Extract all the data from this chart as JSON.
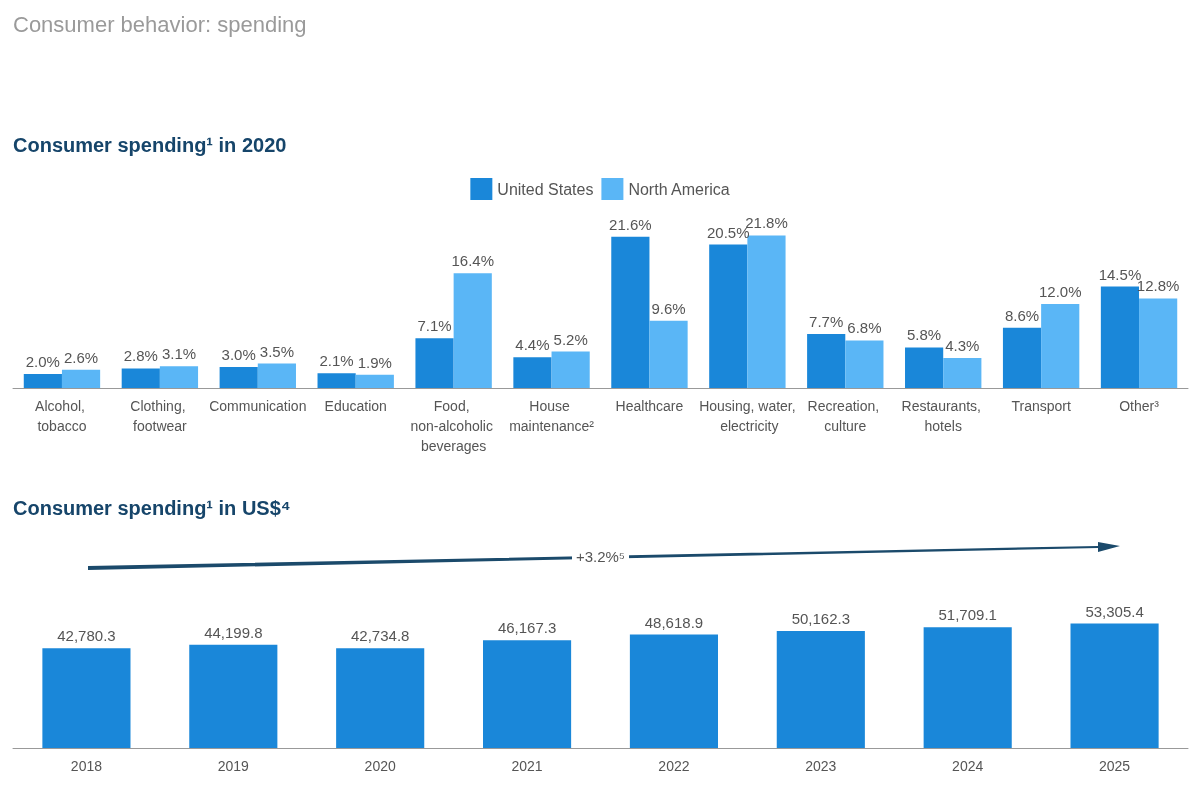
{
  "chart_data": [
    {
      "type": "bar",
      "title": "Consumer behavior: spending",
      "subtitle": "Consumer spending¹ in 2020",
      "categories": [
        "Alcohol, tobacco",
        "Clothing, footwear",
        "Communication",
        "Education",
        "Food, non-alcoholic beverages",
        "House maintenance²",
        "Healthcare",
        "Housing, water, electricity",
        "Recreation, culture",
        "Restaurants, hotels",
        "Transport",
        "Other³"
      ],
      "series": [
        {
          "name": "United States",
          "color": "#1a87d9",
          "values": [
            2.0,
            2.8,
            3.0,
            2.1,
            7.1,
            4.4,
            21.6,
            20.5,
            7.7,
            5.8,
            8.6,
            14.5
          ],
          "value_labels": [
            "2.0%",
            "2.8%",
            "3.0%",
            "2.1%",
            "7.1%",
            "4.4%",
            "21.6%",
            "20.5%",
            "7.7%",
            "5.8%",
            "8.6%",
            "14.5%"
          ]
        },
        {
          "name": "North America",
          "color": "#5ab6f6",
          "values": [
            2.6,
            3.1,
            3.5,
            1.9,
            16.4,
            5.2,
            9.6,
            21.8,
            6.8,
            4.3,
            12.0,
            12.8
          ],
          "value_labels": [
            "2.6%",
            "3.1%",
            "3.5%",
            "1.9%",
            "16.4%",
            "5.2%",
            "9.6%",
            "21.8%",
            "6.8%",
            "4.3%",
            "12.0%",
            "12.8%"
          ]
        }
      ],
      "legend": "top",
      "grid": false
    },
    {
      "type": "bar",
      "title": "Consumer spending¹ in US$⁴",
      "categories": [
        "2018",
        "2019",
        "2020",
        "2021",
        "2022",
        "2023",
        "2024",
        "2025"
      ],
      "values": [
        42780.3,
        44199.8,
        42734.8,
        46167.3,
        48618.9,
        50162.3,
        51709.1,
        53305.4
      ],
      "value_labels": [
        "42,780.3",
        "44,199.8",
        "42,734.8",
        "46,167.3",
        "48,618.9",
        "50,162.3",
        "51,709.1",
        "53,305.4"
      ],
      "color": "#1a87d9",
      "annotations": [
        "+3.2%⁵"
      ],
      "grid": false
    }
  ]
}
